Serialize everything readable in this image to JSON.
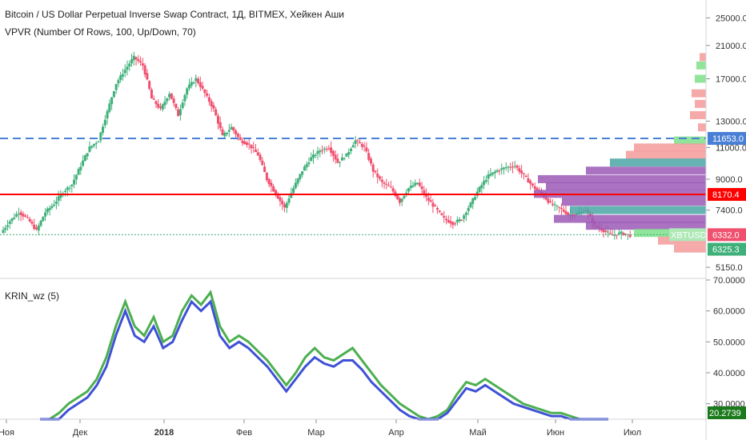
{
  "header": {
    "title": "Bitcoin / US Dollar Perpetual Inverse Swap Contract, 1Д, BITMEX, Хейкен Аши",
    "indicator": "VPVR (Number Of Rows, 100, Up/Down, 70)",
    "osc_label": "KRIN_wz (5)"
  },
  "colors": {
    "up": "#3fb07a",
    "down": "#f0506e",
    "red_line": "#ff0000",
    "blue_line": "#4a7fd6",
    "vp_purple": "#9b59b6",
    "vp_teal": "#4aa6a6",
    "vp_green": "#7ee08a",
    "vp_pink": "#f59a9a",
    "osc_green": "#4caf50",
    "osc_blue": "#3f51d6"
  },
  "chart_data": [
    {
      "type": "candlestick",
      "yscale": "log",
      "ylim": [
        4800,
        28000
      ],
      "yticks": [
        "25000.0",
        "21000.0",
        "17000.0",
        "13000.0",
        "11000.0",
        "9000.0",
        "7400.0",
        "5150.0"
      ],
      "ytick_values": [
        25000,
        21000,
        17000,
        13000,
        11000,
        9000,
        7400,
        5150
      ],
      "xticks": [
        "Ноя",
        "Дек",
        "2018",
        "Фев",
        "Мар",
        "Апр",
        "Май",
        "Июн",
        "Июл"
      ],
      "close_series": [
        6400,
        6900,
        7300,
        7000,
        6500,
        7300,
        7700,
        8300,
        8700,
        9800,
        11000,
        11500,
        13800,
        16500,
        18000,
        19500,
        18500,
        15000,
        14000,
        15500,
        13500,
        16000,
        17000,
        15500,
        14000,
        11800,
        12500,
        11500,
        11200,
        10500,
        9000,
        8200,
        7500,
        8500,
        9500,
        10300,
        10800,
        11000,
        10000,
        10500,
        11500,
        11000,
        9500,
        8800,
        8500,
        7800,
        8500,
        8800,
        8000,
        7500,
        7000,
        6800,
        7000,
        7700,
        8500,
        9200,
        9500,
        9700,
        9800,
        9200,
        8600,
        8200,
        7700,
        7500,
        7200,
        7200,
        7400,
        6700,
        6500,
        6300,
        6400,
        6300
      ],
      "hlines": [
        {
          "value": 11653.0,
          "label": "11653.0",
          "style": "dashed-blue"
        },
        {
          "value": 8170.4,
          "label": "8170.4",
          "style": "solid-red"
        },
        {
          "value": 6332.0,
          "label": "6332.0",
          "style": "dotted-green"
        }
      ],
      "price_tags": [
        {
          "label": "XBTUSD",
          "value": 6332.0
        },
        {
          "label": "6332.0",
          "value": 6332.0
        },
        {
          "label": "6325.3",
          "value": 6325.3
        }
      ],
      "volume_profile_note": "VPVR up/down volume rows at right edge"
    },
    {
      "type": "line",
      "ylim": [
        25,
        70
      ],
      "yticks": [
        "70.0000",
        "60.0000",
        "50.0000",
        "40.0000",
        "30.0000"
      ],
      "ytick_values": [
        70,
        60,
        50,
        40,
        30
      ],
      "series": [
        {
          "name": "",
          "color": "green",
          "values": [
            22,
            24,
            27,
            30,
            32,
            34,
            38,
            45,
            55,
            63,
            55,
            52,
            58,
            50,
            52,
            60,
            65,
            62,
            66,
            55,
            50,
            52,
            50,
            47,
            44,
            40,
            36,
            40,
            45,
            48,
            45,
            44,
            46,
            48,
            44,
            40,
            36,
            33,
            30,
            28,
            26,
            25,
            26,
            28,
            33,
            37,
            36,
            38,
            36,
            34,
            32,
            30,
            29,
            28,
            27,
            27,
            26,
            25,
            24,
            24,
            24
          ]
        },
        {
          "name": "",
          "color": "blue",
          "values": [
            21,
            23,
            25,
            28,
            30,
            32,
            36,
            42,
            52,
            60,
            52,
            50,
            55,
            48,
            50,
            57,
            63,
            60,
            63,
            52,
            48,
            50,
            48,
            45,
            42,
            38,
            34,
            38,
            42,
            45,
            43,
            42,
            44,
            44,
            41,
            37,
            34,
            31,
            28,
            26,
            25,
            24,
            25,
            27,
            31,
            35,
            34,
            36,
            34,
            32,
            30,
            29,
            28,
            27,
            26,
            26,
            25,
            24,
            24,
            23,
            23
          ]
        }
      ],
      "last_value": "20.2739"
    }
  ]
}
